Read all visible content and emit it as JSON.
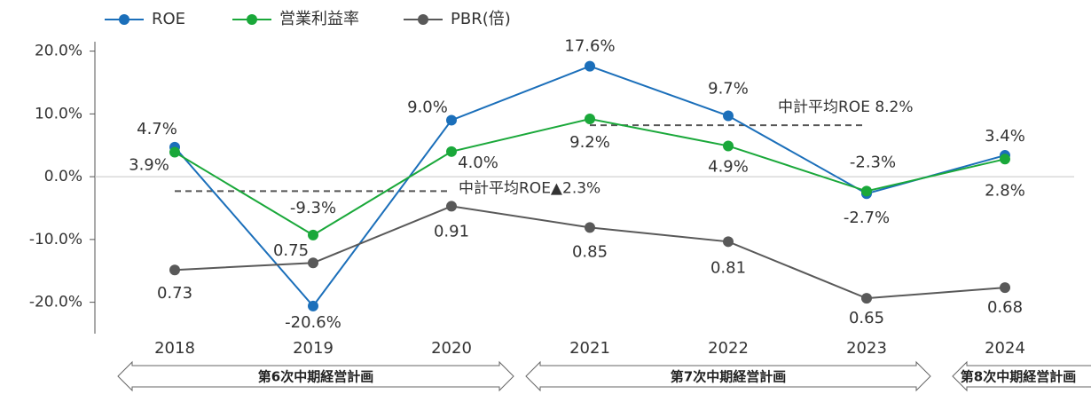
{
  "chart_data": {
    "type": "line",
    "categories": [
      "2018",
      "2019",
      "2020",
      "2021",
      "2022",
      "2023",
      "2024"
    ],
    "series": [
      {
        "name": "ROE",
        "color": "#1b6fba",
        "values": [
          4.7,
          -20.6,
          9.0,
          17.6,
          9.7,
          -2.7,
          3.4
        ],
        "value_labels": [
          "4.7%",
          "-20.6%",
          "9.0%",
          "17.6%",
          "9.7%",
          "-2.7%",
          "3.4%"
        ]
      },
      {
        "name": "営業利益率",
        "color": "#1aa83a",
        "values": [
          3.9,
          -9.3,
          4.0,
          9.2,
          4.9,
          -2.3,
          2.8
        ],
        "value_labels": [
          "3.9%",
          "-9.3%",
          "4.0%",
          "9.2%",
          "4.9%",
          "-2.3%",
          "2.8%"
        ]
      },
      {
        "name": "PBR(倍)",
        "color": "#595959",
        "axis": "y2",
        "values": [
          0.73,
          0.75,
          0.91,
          0.85,
          0.81,
          0.65,
          0.68
        ]
      }
    ],
    "ylim": [
      -25,
      21.5
    ],
    "yticks": [
      {
        "value": 20,
        "label": "20.0%"
      },
      {
        "value": 10,
        "label": "10.0%"
      },
      {
        "value": 0,
        "label": "0.0%"
      },
      {
        "value": -10,
        "label": "-10.0%"
      },
      {
        "value": -20,
        "label": "-20.0%"
      }
    ],
    "y2lim": [
      0.55,
      1.375
    ],
    "legend": "top",
    "annotations": [
      {
        "label": "中計平均ROE 8.2%",
        "value": 8.2,
        "start": "2021",
        "end": "2023"
      },
      {
        "label": "中計平均ROE▲2.3%",
        "value": -2.3,
        "start": "2018",
        "end": "2020"
      }
    ],
    "periods": [
      {
        "label": "第6次中期経営計画",
        "start": "2018",
        "end": "2020"
      },
      {
        "label": "第7次中期経営計画",
        "start": "2021",
        "end": "2023"
      },
      {
        "label": "第8次中期経営計画",
        "start": "2024",
        "end": "2024"
      }
    ]
  }
}
